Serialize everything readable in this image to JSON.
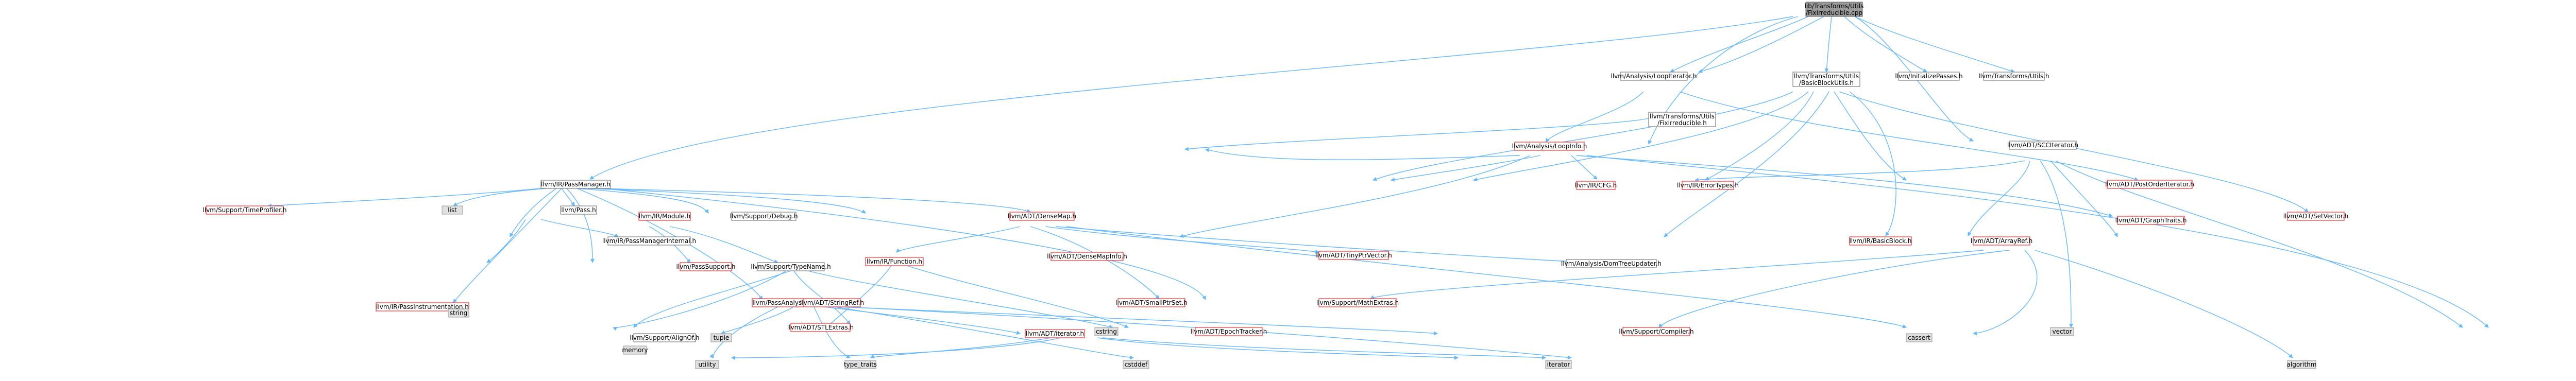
{
  "root": {
    "line1": "lib/Transforms/Utils",
    "line2": "/FixIrreducible.cpp"
  },
  "nodes": {
    "LoopIterator": [
      "llvm/Analysis/LoopIterator.h"
    ],
    "BasicBlockUtils": [
      "llvm/Transforms/Utils",
      "/BasicBlockUtils.h"
    ],
    "InitializePasses": [
      "llvm/InitializePasses.h"
    ],
    "TransformsUtils": [
      "llvm/Transforms/Utils.h"
    ],
    "FixIrreducibleH": [
      "llvm/Transforms/Utils",
      "/FixIrreducible.h"
    ],
    "LoopInfo": [
      "llvm/Analysis/LoopInfo.h"
    ],
    "SCCIterator": [
      "llvm/ADT/SCCIterator.h"
    ],
    "PassManager": [
      "llvm/IR/PassManager.h"
    ],
    "CFG": [
      "llvm/IR/CFG.h"
    ],
    "PostOrderIterator": [
      "llvm/ADT/PostOrderIterator.h"
    ],
    "ErrorTypes": [
      "llvm/IR/ErrorTypes.h"
    ],
    "TimeProfiler": [
      "llvm/Support/TimeProfiler.h"
    ],
    "list": [
      "list"
    ],
    "PassH": [
      "llvm/Pass.h"
    ],
    "Module": [
      "llvm/IR/Module.h"
    ],
    "Debug": [
      "llvm/Support/Debug.h"
    ],
    "DenseMap": [
      "llvm/ADT/DenseMap.h"
    ],
    "GraphTraits": [
      "llvm/ADT/GraphTraits.h"
    ],
    "SetVector": [
      "llvm/ADT/SetVector.h"
    ],
    "PassManagerInternal": [
      "llvm/IR/PassManagerInternal.h"
    ],
    "PassSupport": [
      "llvm/PassSupport.h"
    ],
    "TypeName": [
      "llvm/Support/TypeName.h"
    ],
    "Function": [
      "llvm/IR/Function.h"
    ],
    "DenseMapInfo": [
      "llvm/ADT/DenseMapInfo.h"
    ],
    "TinyPtrVector": [
      "llvm/ADT/TinyPtrVector.h"
    ],
    "DomTreeUpdater": [
      "llvm/Analysis/DomTreeUpdater.h"
    ],
    "PassAnalysisSupport": [
      "llvm/PassAnalysisSupport.h"
    ],
    "StringRef": [
      "llvm/ADT/StringRef.h"
    ],
    "SmallPtrSet": [
      "llvm/ADT/SmallPtrSet.h"
    ],
    "MathExtras": [
      "llvm/Support/MathExtras.h"
    ],
    "BasicBlock": [
      "llvm/IR/BasicBlock.h"
    ],
    "ArrayRef": [
      "llvm/ADT/ArrayRef.h"
    ],
    "PassInstrumentation": [
      "llvm/IR/PassInstrumentation.h"
    ],
    "string": [
      "string"
    ],
    "STLExtras": [
      "llvm/ADT/STLExtras.h"
    ],
    "cstring": [
      "cstring"
    ],
    "EpochTracker": [
      "llvm/ADT/EpochTracker.h"
    ],
    "Compiler": [
      "llvm/Support/Compiler.h"
    ],
    "vector": [
      "vector"
    ],
    "AlignOf": [
      "llvm/Support/AlignOf.h"
    ],
    "tuple": [
      "tuple"
    ],
    "memory": [
      "memory"
    ],
    "iteratorH": [
      "llvm/ADT/iterator.h"
    ],
    "cassert": [
      "cassert"
    ],
    "utility": [
      "utility"
    ],
    "type_traits": [
      "type_traits"
    ],
    "cstddef": [
      "cstddef"
    ],
    "iterator": [
      "iterator"
    ],
    "algorithm": [
      "algorithm"
    ]
  }
}
